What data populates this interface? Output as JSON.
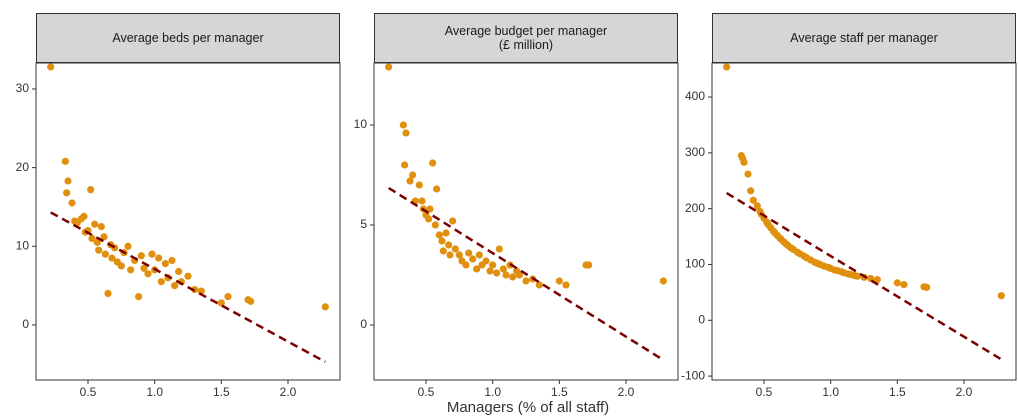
{
  "x_label": "Managers (% of all staff)",
  "chart_data": [
    {
      "type": "scatter",
      "title": "Average beds per manager",
      "color": "#e0900e",
      "x": [
        0.22,
        0.33,
        0.34,
        0.35,
        0.38,
        0.4,
        0.42,
        0.45,
        0.47,
        0.48,
        0.5,
        0.52,
        0.53,
        0.55,
        0.57,
        0.58,
        0.6,
        0.62,
        0.63,
        0.65,
        0.67,
        0.68,
        0.7,
        0.72,
        0.75,
        0.77,
        0.8,
        0.82,
        0.85,
        0.88,
        0.9,
        0.92,
        0.95,
        0.98,
        1.0,
        1.03,
        1.05,
        1.08,
        1.1,
        1.13,
        1.15,
        1.18,
        1.2,
        1.25,
        1.3,
        1.35,
        1.5,
        1.55,
        1.7,
        1.72,
        2.28
      ],
      "values": [
        32.8,
        20.8,
        16.8,
        18.3,
        15.5,
        13.2,
        13.0,
        13.5,
        13.8,
        11.8,
        12.0,
        17.2,
        11.0,
        12.8,
        10.5,
        9.5,
        12.5,
        11.2,
        9.0,
        4.0,
        10.2,
        8.5,
        9.8,
        8.0,
        7.5,
        9.2,
        10.0,
        7.0,
        8.2,
        3.6,
        8.8,
        7.2,
        6.5,
        9.0,
        7.0,
        8.5,
        5.5,
        7.8,
        6.0,
        8.2,
        5.0,
        6.8,
        5.5,
        6.2,
        4.5,
        4.3,
        2.8,
        3.6,
        3.2,
        3.0,
        2.3
      ],
      "trend": {
        "color": "#7b0000",
        "x": [
          0.22,
          2.28
        ],
        "values": [
          14.3,
          -4.7
        ]
      },
      "xlim": [
        0.11,
        2.39
      ],
      "xticks": [
        0.5,
        {
          "value": 1,
          "label": "1.0"
        },
        1.5,
        {
          "value": 2,
          "label": "2.0"
        }
      ],
      "ylim": [
        -7.0,
        33.3
      ],
      "yticks": [
        0,
        10,
        20,
        30
      ]
    },
    {
      "type": "scatter",
      "title": "Average budget per manager\n(£ million)",
      "color": "#e0900e",
      "x": [
        0.22,
        0.33,
        0.34,
        0.35,
        0.38,
        0.4,
        0.42,
        0.45,
        0.47,
        0.48,
        0.5,
        0.52,
        0.53,
        0.55,
        0.57,
        0.58,
        0.6,
        0.62,
        0.63,
        0.65,
        0.67,
        0.68,
        0.7,
        0.72,
        0.75,
        0.77,
        0.8,
        0.82,
        0.85,
        0.88,
        0.9,
        0.92,
        0.95,
        0.98,
        1.0,
        1.03,
        1.05,
        1.08,
        1.1,
        1.13,
        1.15,
        1.18,
        1.2,
        1.25,
        1.3,
        1.35,
        1.5,
        1.55,
        1.7,
        1.72,
        2.28
      ],
      "values": [
        12.9,
        10.0,
        8.0,
        9.6,
        7.2,
        7.5,
        6.2,
        7.0,
        6.2,
        5.8,
        5.5,
        5.3,
        5.8,
        8.1,
        5.0,
        6.8,
        4.5,
        4.2,
        3.7,
        4.6,
        4.0,
        3.5,
        5.2,
        3.8,
        3.5,
        3.2,
        3.0,
        3.6,
        3.3,
        2.8,
        3.5,
        3.0,
        3.2,
        2.7,
        3.0,
        2.6,
        3.8,
        2.8,
        2.5,
        3.0,
        2.4,
        2.7,
        2.5,
        2.2,
        2.3,
        2.0,
        2.2,
        2.0,
        3.0,
        3.0,
        2.2
      ],
      "trend": {
        "color": "#7b0000",
        "x": [
          0.22,
          2.28
        ],
        "values": [
          6.85,
          -1.75
        ]
      },
      "xlim": [
        0.11,
        2.39
      ],
      "xticks": [
        0.5,
        {
          "value": 1,
          "label": "1.0"
        },
        1.5,
        {
          "value": 2,
          "label": "2.0"
        }
      ],
      "ylim": [
        -2.75,
        13.1
      ],
      "yticks": [
        0,
        5,
        10
      ]
    },
    {
      "type": "scatter",
      "title": "Average staff per manager",
      "color": "#e0900e",
      "x": [
        0.22,
        0.33,
        0.34,
        0.35,
        0.38,
        0.4,
        0.42,
        0.45,
        0.47,
        0.48,
        0.5,
        0.52,
        0.53,
        0.55,
        0.57,
        0.58,
        0.6,
        0.62,
        0.63,
        0.65,
        0.67,
        0.68,
        0.7,
        0.72,
        0.75,
        0.77,
        0.8,
        0.82,
        0.85,
        0.88,
        0.9,
        0.92,
        0.95,
        0.98,
        1.0,
        1.03,
        1.05,
        1.08,
        1.1,
        1.13,
        1.15,
        1.18,
        1.2,
        1.25,
        1.3,
        1.35,
        1.5,
        1.55,
        1.7,
        1.72,
        2.28
      ],
      "values": [
        454,
        295,
        290,
        283,
        262,
        232,
        215,
        205,
        195,
        190,
        183,
        176,
        172,
        166,
        160,
        157,
        152,
        147,
        145,
        140,
        136,
        134,
        130,
        127,
        122,
        119,
        115,
        112,
        108,
        104,
        102,
        100,
        97,
        95,
        93,
        90,
        89,
        87,
        85,
        83,
        82,
        80,
        79,
        77,
        75,
        73,
        67,
        64,
        60,
        59,
        44
      ],
      "trend": {
        "color": "#7b0000",
        "x": [
          0.22,
          2.28
        ],
        "values": [
          228,
          -70
        ]
      },
      "xlim": [
        0.11,
        2.39
      ],
      "xticks": [
        0.5,
        {
          "value": 1,
          "label": "1.0"
        },
        1.5,
        {
          "value": 2,
          "label": "2.0"
        }
      ],
      "ylim": [
        -107,
        461
      ],
      "yticks": [
        -100,
        0,
        100,
        200,
        300,
        400
      ]
    }
  ]
}
